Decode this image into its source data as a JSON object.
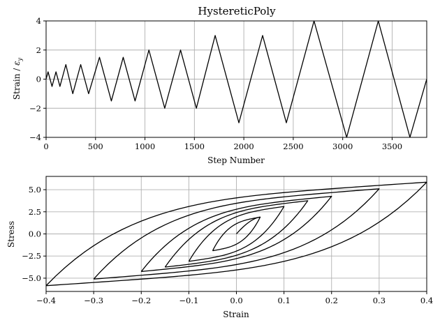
{
  "chart_data": [
    {
      "type": "line",
      "title": "HystereticPoly",
      "xlabel": "Step Number",
      "ylabel": "Strain / εy",
      "xlim": [
        0,
        3850
      ],
      "ylim": [
        -4,
        4
      ],
      "xticks": [
        0,
        500,
        1000,
        1500,
        2000,
        2500,
        3000,
        3500
      ],
      "yticks": [
        -4,
        -2,
        0,
        2,
        4
      ],
      "xtick_labels": [
        "0",
        "500",
        "1000",
        "1500",
        "2000",
        "2500",
        "3000",
        "3500"
      ],
      "ytick_labels": [
        "−4",
        "−2",
        "0",
        "2",
        "4"
      ],
      "grid": true,
      "series": [
        {
          "x": [
            0,
            20,
            60,
            100,
            140,
            200,
            270,
            350,
            430,
            540,
            660,
            780,
            900,
            1040,
            1200,
            1360,
            1520,
            1710,
            1950,
            2190,
            2430,
            2710,
            3040,
            3360,
            3680,
            3850
          ],
          "y": [
            0,
            0.5,
            -0.5,
            0.5,
            -0.5,
            1,
            -1,
            1,
            -1,
            1.5,
            -1.5,
            1.5,
            -1.5,
            2,
            -2,
            2,
            -2,
            3,
            -3,
            3,
            -3,
            4,
            -4,
            4,
            -4,
            0
          ]
        }
      ]
    },
    {
      "type": "line",
      "xlabel": "Strain",
      "ylabel": "Stress",
      "xlim": [
        -0.4,
        0.4
      ],
      "ylim": [
        -6.5,
        6.5
      ],
      "xticks": [
        -0.4,
        -0.3,
        -0.2,
        -0.1,
        0.0,
        0.1,
        0.2,
        0.3,
        0.4
      ],
      "yticks": [
        -5.0,
        -2.5,
        0.0,
        2.5,
        5.0
      ],
      "xtick_labels": [
        "−0.4",
        "−0.3",
        "−0.2",
        "−0.1",
        "0.0",
        "0.1",
        "0.2",
        "0.3",
        "0.4"
      ],
      "ytick_labels": [
        "−5.0",
        "−2.5",
        "0.0",
        "2.5",
        "5.0"
      ],
      "grid": true,
      "cycles": [
        {
          "amplitude": 0.05,
          "peak_stress": 1.9,
          "residual": 0.4
        },
        {
          "amplitude": 0.1,
          "peak_stress": 3.1,
          "residual": 0.55
        },
        {
          "amplitude": 0.15,
          "peak_stress": 3.75,
          "residual": 0.7
        },
        {
          "amplitude": 0.2,
          "peak_stress": 4.25,
          "residual": 0.85
        },
        {
          "amplitude": 0.3,
          "peak_stress": 5.1,
          "residual": 1.1
        },
        {
          "amplitude": 0.4,
          "peak_stress": 5.85,
          "residual": 1.4
        }
      ]
    }
  ]
}
